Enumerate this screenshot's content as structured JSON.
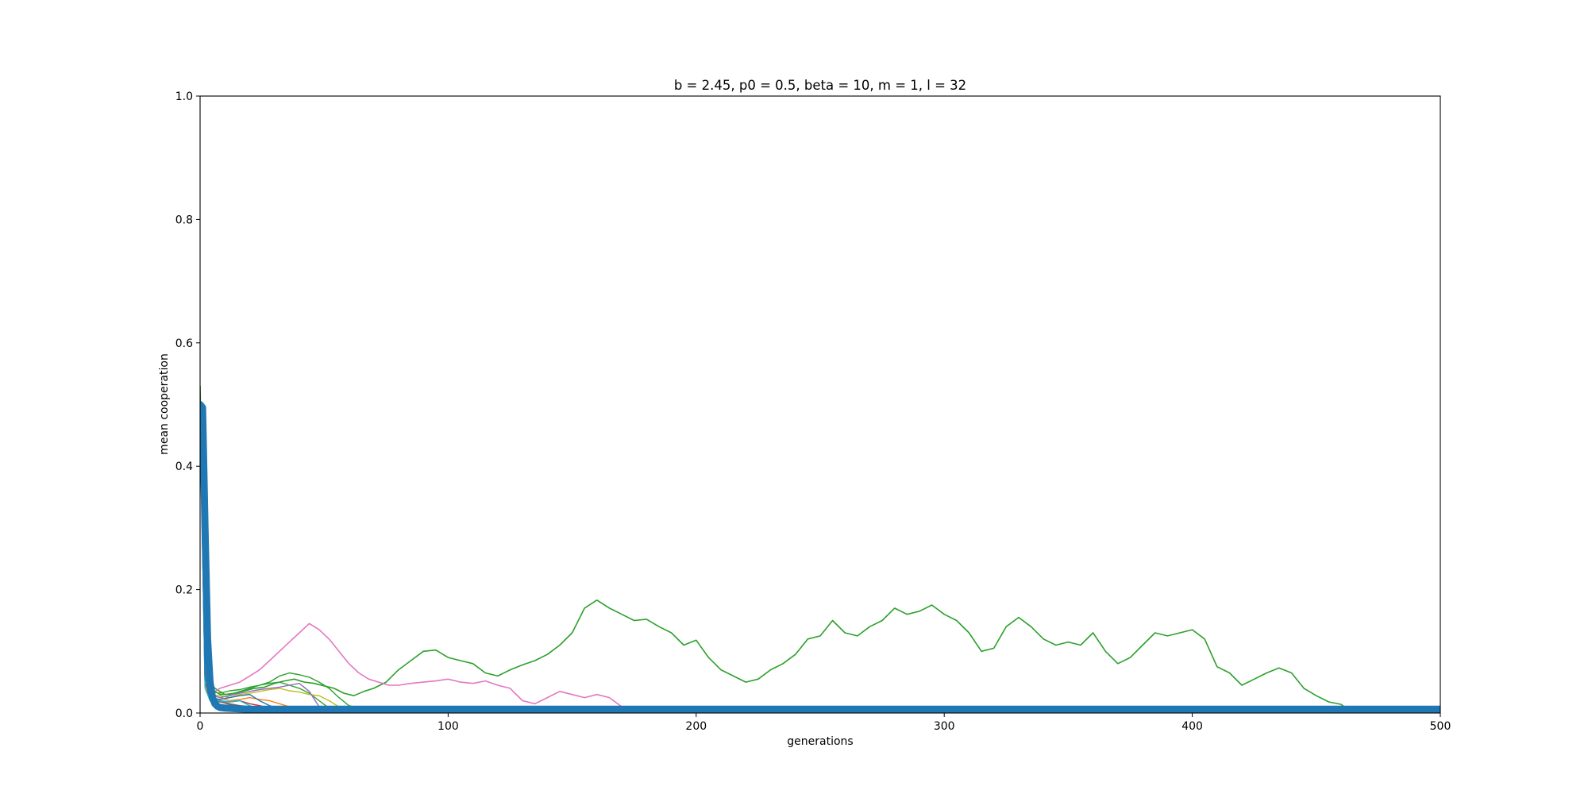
{
  "chart_data": {
    "type": "line",
    "title": "b = 2.45, p0 = 0.5, beta = 10, m = 1, l = 32",
    "xlabel": "generations",
    "ylabel": "mean cooperation",
    "xlim": [
      0,
      500
    ],
    "ylim": [
      0,
      1.0
    ],
    "xticks": [
      0,
      100,
      200,
      300,
      400,
      500
    ],
    "xtick_labels": [
      "0",
      "100",
      "200",
      "300",
      "400",
      "500"
    ],
    "yticks": [
      0,
      0.2,
      0.4,
      0.6,
      0.8,
      1.0
    ],
    "ytick_labels": [
      "0.0",
      "0.2",
      "0.4",
      "0.6",
      "0.8",
      "1.0"
    ],
    "grid": false,
    "legend": false,
    "series": [
      {
        "color": "#2ca02c",
        "width": 1.6,
        "x": [
          0,
          1,
          2,
          4,
          6,
          8,
          10,
          14,
          18,
          22,
          26,
          30,
          34,
          38,
          42,
          46,
          50,
          54,
          58,
          62,
          66,
          70,
          75,
          80,
          85,
          90,
          95,
          100,
          105,
          110,
          115,
          120,
          125,
          130,
          135,
          140,
          145,
          150,
          155,
          160,
          165,
          170,
          175,
          180,
          185,
          190,
          195,
          200,
          205,
          210,
          215,
          220,
          225,
          230,
          235,
          240,
          245,
          250,
          255,
          260,
          265,
          270,
          275,
          280,
          285,
          290,
          295,
          300,
          305,
          310,
          315,
          320,
          325,
          330,
          335,
          340,
          345,
          350,
          355,
          360,
          365,
          370,
          375,
          380,
          385,
          390,
          395,
          400,
          405,
          410,
          415,
          420,
          425,
          430,
          435,
          440,
          445,
          450,
          455,
          460,
          462
        ],
        "y": [
          0.53,
          0.32,
          0.12,
          0.05,
          0.04,
          0.035,
          0.03,
          0.032,
          0.036,
          0.04,
          0.042,
          0.048,
          0.052,
          0.055,
          0.05,
          0.048,
          0.044,
          0.04,
          0.032,
          0.028,
          0.035,
          0.04,
          0.05,
          0.07,
          0.085,
          0.1,
          0.102,
          0.09,
          0.085,
          0.08,
          0.065,
          0.06,
          0.07,
          0.078,
          0.085,
          0.095,
          0.11,
          0.13,
          0.17,
          0.183,
          0.17,
          0.16,
          0.15,
          0.152,
          0.14,
          0.13,
          0.11,
          0.118,
          0.09,
          0.07,
          0.06,
          0.05,
          0.055,
          0.07,
          0.08,
          0.095,
          0.12,
          0.125,
          0.15,
          0.13,
          0.125,
          0.14,
          0.15,
          0.17,
          0.16,
          0.165,
          0.175,
          0.16,
          0.15,
          0.13,
          0.1,
          0.105,
          0.14,
          0.155,
          0.14,
          0.12,
          0.11,
          0.115,
          0.11,
          0.13,
          0.1,
          0.08,
          0.09,
          0.11,
          0.13,
          0.125,
          0.13,
          0.135,
          0.12,
          0.075,
          0.065,
          0.045,
          0.055,
          0.065,
          0.073,
          0.065,
          0.04,
          0.028,
          0.018,
          0.014,
          0.008
        ]
      },
      {
        "color": "#e377c2",
        "width": 1.6,
        "x": [
          0,
          2,
          4,
          6,
          8,
          12,
          16,
          20,
          24,
          28,
          32,
          36,
          40,
          44,
          48,
          52,
          56,
          60,
          64,
          68,
          72,
          76,
          80,
          85,
          90,
          95,
          100,
          105,
          110,
          115,
          120,
          125,
          130,
          135,
          140,
          145,
          150,
          155,
          160,
          165,
          170
        ],
        "y": [
          0.5,
          0.12,
          0.04,
          0.035,
          0.04,
          0.045,
          0.05,
          0.06,
          0.07,
          0.085,
          0.1,
          0.115,
          0.13,
          0.145,
          0.135,
          0.12,
          0.1,
          0.08,
          0.065,
          0.055,
          0.05,
          0.045,
          0.045,
          0.048,
          0.05,
          0.052,
          0.055,
          0.05,
          0.048,
          0.052,
          0.045,
          0.04,
          0.02,
          0.015,
          0.025,
          0.035,
          0.03,
          0.025,
          0.03,
          0.025,
          0.01
        ]
      },
      {
        "color": "#2ca02c",
        "width": 1.4,
        "x": [
          0,
          2,
          4,
          8,
          12,
          16,
          20,
          24,
          28,
          32,
          36,
          40,
          44,
          48,
          52,
          56,
          60,
          64
        ],
        "y": [
          0.5,
          0.1,
          0.04,
          0.03,
          0.03,
          0.035,
          0.04,
          0.045,
          0.05,
          0.06,
          0.065,
          0.062,
          0.058,
          0.05,
          0.04,
          0.025,
          0.012,
          0.008
        ]
      },
      {
        "color": "#2ca02c",
        "width": 1.4,
        "x": [
          0,
          2,
          4,
          8,
          12,
          16,
          20,
          24,
          28,
          32,
          36,
          40,
          44,
          48,
          52
        ],
        "y": [
          0.49,
          0.08,
          0.035,
          0.032,
          0.036,
          0.038,
          0.042,
          0.045,
          0.048,
          0.05,
          0.045,
          0.04,
          0.032,
          0.02,
          0.008
        ]
      },
      {
        "color": "#bcbd22",
        "width": 1.4,
        "x": [
          0,
          2,
          4,
          8,
          12,
          16,
          20,
          24,
          28,
          32,
          36,
          40,
          44,
          48,
          52,
          56
        ],
        "y": [
          0.5,
          0.08,
          0.03,
          0.028,
          0.025,
          0.03,
          0.032,
          0.035,
          0.038,
          0.04,
          0.036,
          0.034,
          0.03,
          0.028,
          0.02,
          0.01
        ]
      },
      {
        "color": "#ff7f0e",
        "width": 1.4,
        "x": [
          0,
          2,
          4,
          8,
          12,
          16,
          20,
          24,
          28,
          32,
          36,
          40
        ],
        "y": [
          0.5,
          0.06,
          0.03,
          0.025,
          0.02,
          0.022,
          0.025,
          0.022,
          0.02,
          0.015,
          0.01,
          0.006
        ]
      },
      {
        "color": "#d62728",
        "width": 1.4,
        "x": [
          0,
          2,
          4,
          8,
          12,
          16,
          20,
          24,
          28,
          32
        ],
        "y": [
          0.5,
          0.05,
          0.025,
          0.02,
          0.018,
          0.02,
          0.015,
          0.012,
          0.008,
          0.005
        ]
      },
      {
        "color": "#9467bd",
        "width": 1.4,
        "x": [
          0,
          2,
          4,
          8,
          12,
          16,
          20,
          24,
          28,
          32,
          36,
          40,
          44,
          48
        ],
        "y": [
          0.5,
          0.07,
          0.03,
          0.025,
          0.028,
          0.032,
          0.035,
          0.038,
          0.04,
          0.042,
          0.045,
          0.048,
          0.035,
          0.01
        ]
      },
      {
        "color": "#7f7f7f",
        "width": 1.4,
        "x": [
          0,
          2,
          4,
          8,
          12,
          16,
          20,
          24,
          28
        ],
        "y": [
          0.5,
          0.05,
          0.025,
          0.02,
          0.015,
          0.012,
          0.01,
          0.008,
          0.005
        ]
      },
      {
        "color": "#8c564b",
        "width": 1.4,
        "x": [
          0,
          2,
          4,
          8,
          12,
          16,
          20,
          24
        ],
        "y": [
          0.5,
          0.05,
          0.02,
          0.018,
          0.014,
          0.012,
          0.008,
          0.004
        ]
      },
      {
        "color": "#17becf",
        "width": 1.4,
        "x": [
          0,
          2,
          4,
          8,
          12,
          16,
          20,
          24
        ],
        "y": [
          0.5,
          0.04,
          0.02,
          0.02,
          0.018,
          0.02,
          0.012,
          0.005
        ]
      },
      {
        "color": "#1f77b4",
        "width": 1.4,
        "x": [
          0,
          2,
          4,
          8,
          12,
          16,
          20,
          24,
          28,
          32,
          36
        ],
        "y": [
          0.5,
          0.06,
          0.025,
          0.022,
          0.025,
          0.028,
          0.03,
          0.02,
          0.012,
          0.006,
          0.003
        ]
      },
      {
        "color": "#1f77b4",
        "width": 9,
        "x": [
          0,
          1,
          2,
          3,
          4,
          5,
          6,
          7,
          8,
          10,
          15,
          20,
          50,
          100,
          150,
          200,
          250,
          300,
          350,
          400,
          450,
          500
        ],
        "y": [
          0.5,
          0.495,
          0.3,
          0.12,
          0.05,
          0.025,
          0.015,
          0.011,
          0.009,
          0.008,
          0.007,
          0.006,
          0.006,
          0.006,
          0.006,
          0.006,
          0.006,
          0.006,
          0.006,
          0.006,
          0.006,
          0.006
        ]
      }
    ]
  }
}
